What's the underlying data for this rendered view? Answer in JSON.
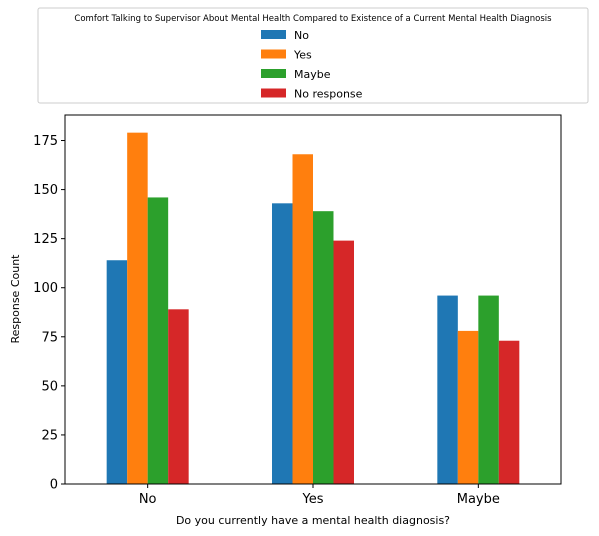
{
  "chart_data": {
    "type": "bar",
    "categories": [
      "No",
      "Yes",
      "Maybe"
    ],
    "series": [
      {
        "name": "No",
        "values": [
          114,
          143,
          96
        ],
        "color": "#1f77b4"
      },
      {
        "name": "Yes",
        "values": [
          179,
          168,
          78
        ],
        "color": "#ff7f0e"
      },
      {
        "name": "Maybe",
        "values": [
          146,
          139,
          96
        ],
        "color": "#2ca02c"
      },
      {
        "name": "No response",
        "values": [
          89,
          124,
          73
        ],
        "color": "#d62728"
      }
    ],
    "legend_title": "Comfort Talking to Supervisor About Mental Health Compared to Existence of a Current Mental Health Diagnosis",
    "legend_placement": "top-center",
    "xlabel": "Do you currently have a mental health diagnosis?",
    "ylabel": "Response Count",
    "ylim": [
      0,
      188
    ],
    "yticks": [
      0,
      25,
      50,
      75,
      100,
      125,
      150,
      175
    ],
    "grid": false
  }
}
